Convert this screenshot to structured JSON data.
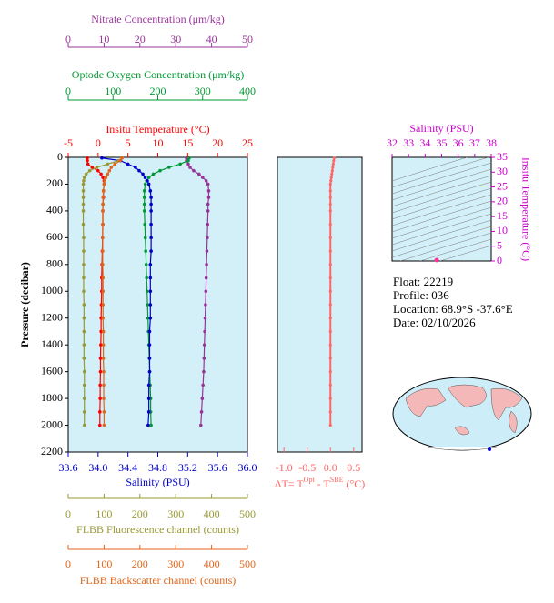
{
  "chart_data": [
    {
      "type": "profile",
      "y_label": "Pressure (decibar)",
      "ylim": [
        0,
        2200
      ],
      "yticks": [
        0,
        200,
        400,
        600,
        800,
        1000,
        1200,
        1400,
        1600,
        1800,
        2000,
        2200
      ],
      "pressure": [
        5,
        25,
        50,
        75,
        100,
        125,
        150,
        175,
        200,
        250,
        300,
        350,
        400,
        500,
        600,
        700,
        800,
        900,
        1000,
        1100,
        1200,
        1300,
        1400,
        1500,
        1600,
        1700,
        1800,
        1900,
        2000
      ],
      "axes": [
        {
          "label": "Nitrate Concentration (μm/kg)",
          "color": "#993399",
          "xlim": [
            0,
            50
          ],
          "xticks": [
            0,
            10,
            20,
            30,
            40,
            50
          ],
          "values": [
            33,
            33,
            33.5,
            34,
            35,
            36.5,
            37.5,
            38.5,
            39,
            39.2,
            39.2,
            39,
            39,
            38.9,
            38.8,
            38.7,
            38.6,
            38.5,
            38.4,
            38.3,
            38.2,
            38.1,
            38,
            37.9,
            37.8,
            37.6,
            37.4,
            37.2,
            37
          ]
        },
        {
          "label": "Optode Oxygen Concentration (μm/kg)",
          "color": "#009933",
          "xlim": [
            0,
            400
          ],
          "xticks": [
            0,
            100,
            200,
            300,
            400
          ],
          "values": [
            270,
            268,
            250,
            225,
            205,
            190,
            180,
            175,
            172,
            170,
            170,
            170,
            170,
            171,
            172,
            173,
            174,
            175,
            176,
            177,
            178,
            179,
            180,
            181,
            182,
            183,
            184,
            184,
            185
          ]
        },
        {
          "label": "Insitu Temperature (°C)",
          "color": "#ff0000",
          "xlim": [
            -5,
            25
          ],
          "xticks": [
            -5,
            0,
            5,
            10,
            15,
            20,
            25
          ],
          "values": [
            -1.8,
            -1.8,
            -1.7,
            -1.0,
            0.0,
            0.5,
            0.8,
            1.0,
            1.0,
            0.9,
            0.9,
            0.8,
            0.8,
            0.8,
            0.75,
            0.7,
            0.65,
            0.6,
            0.6,
            0.55,
            0.5,
            0.5,
            0.45,
            0.4,
            0.4,
            0.35,
            0.35,
            0.3,
            0.3
          ]
        },
        {
          "label": "Salinity (PSU)",
          "color": "#0000cc",
          "xlim": [
            33.6,
            36.0
          ],
          "xticks": [
            33.6,
            {
              "value": 34,
              "label": "34.0"
            },
            34.4,
            34.8,
            35.2,
            35.6,
            {
              "value": 36,
              "label": "36.0"
            }
          ],
          "values": [
            34.05,
            34.3,
            34.4,
            34.5,
            34.55,
            34.6,
            34.63,
            34.66,
            34.68,
            34.7,
            34.71,
            34.71,
            34.71,
            34.71,
            34.71,
            34.71,
            34.7,
            34.7,
            34.7,
            34.7,
            34.7,
            34.69,
            34.69,
            34.69,
            34.69,
            34.68,
            34.68,
            34.68,
            34.67
          ]
        },
        {
          "label": "FLBB Fluorescence channel (counts)",
          "color": "#999933",
          "xlim": [
            0,
            500
          ],
          "xticks": [
            0,
            100,
            200,
            300,
            400,
            500
          ],
          "values": [
            150,
            140,
            110,
            80,
            60,
            50,
            45,
            43,
            42,
            42,
            42,
            42,
            42,
            42,
            43,
            43,
            43,
            43,
            43,
            44,
            44,
            44,
            44,
            44,
            45,
            45,
            45,
            45,
            45
          ]
        },
        {
          "label": "FLBB Backscatter channel (counts)",
          "color": "#e0661a",
          "xlim": [
            0,
            500
          ],
          "xticks": [
            0,
            100,
            200,
            300,
            400,
            500
          ],
          "values": [
            150,
            145,
            130,
            120,
            115,
            110,
            105,
            102,
            100,
            98,
            97,
            97,
            96,
            96,
            96,
            96,
            96,
            97,
            97,
            97,
            97,
            98,
            98,
            98,
            99,
            99,
            99,
            100,
            100
          ]
        }
      ]
    },
    {
      "type": "profile-delta",
      "x_label_parts": [
        "ΔT= T",
        "Opt",
        " - T",
        "SBE",
        " (°C)"
      ],
      "color": "#ff6666",
      "xlim": [
        -1.14,
        0.68
      ],
      "xticks": [
        {
          "value": -1,
          "label": "-1.0"
        },
        -0.5,
        {
          "value": 0,
          "label": "0.0"
        },
        0.5
      ],
      "ylim": [
        0,
        2200
      ],
      "pressure": [
        5,
        25,
        50,
        75,
        100,
        125,
        150,
        175,
        200,
        250,
        300,
        350,
        400,
        500,
        600,
        700,
        800,
        900,
        1000,
        1100,
        1200,
        1300,
        1400,
        1500,
        1600,
        1700,
        1800,
        1900,
        2000
      ],
      "values": [
        0.08,
        0.07,
        0.06,
        0.05,
        0.04,
        0.03,
        0.02,
        0.01,
        0,
        0,
        0,
        0,
        0,
        0,
        0,
        0,
        0,
        0,
        0,
        0,
        0,
        0,
        0,
        0,
        0,
        0,
        0,
        0,
        0
      ]
    },
    {
      "type": "scatter",
      "x_label": "Salinity (PSU)",
      "y_label": "Insitu Temperature (°C)",
      "label_color": "#cc00cc",
      "color": "#ff3399",
      "xlim": [
        32,
        38
      ],
      "xticks": [
        32,
        33,
        34,
        35,
        36,
        37,
        38
      ],
      "ylim": [
        0,
        35
      ],
      "yticks": [
        0,
        5,
        10,
        15,
        20,
        25,
        30,
        35
      ],
      "x": [
        34.7
      ],
      "values": [
        0.3
      ]
    }
  ],
  "info": [
    "Float:  22219",
    "Profile:  036",
    "Location:  68.9°S  -37.6°E",
    "Date:  02/10/2026"
  ]
}
